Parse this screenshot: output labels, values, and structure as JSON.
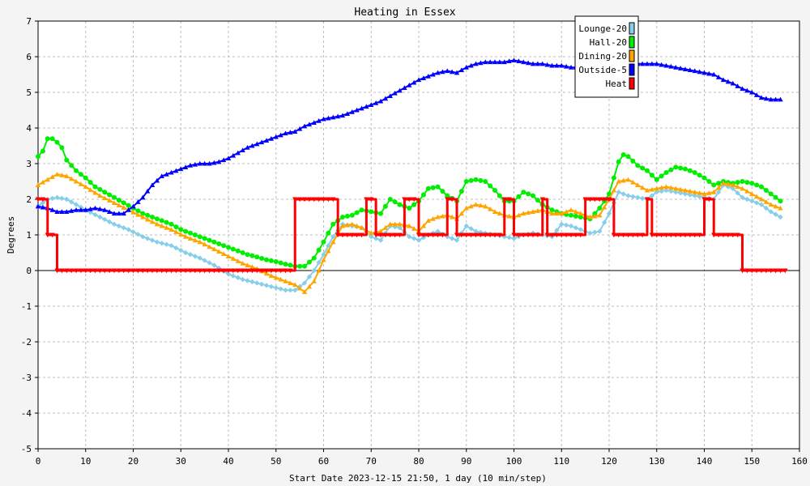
{
  "chart_data": {
    "type": "line",
    "title": "Heating in Essex",
    "xlabel": "Start Date 2023-12-15 21:50, 1 day (10 min/step)",
    "ylabel": "Degrees",
    "xlim": [
      0,
      160
    ],
    "ylim": [
      -5,
      7
    ],
    "xticks": [
      0,
      10,
      20,
      30,
      40,
      50,
      60,
      70,
      80,
      90,
      100,
      110,
      120,
      130,
      140,
      150,
      160
    ],
    "yticks": [
      -5,
      -4,
      -3,
      -2,
      -1,
      0,
      1,
      2,
      3,
      4,
      5,
      6,
      7
    ],
    "grid": true,
    "legend": "top-right",
    "background": "#f4f4f4",
    "series": [
      {
        "name": "Lounge-20",
        "color": "#87ceeb",
        "marker": "diamond",
        "x": [
          0,
          2,
          4,
          6,
          8,
          10,
          13,
          16,
          19,
          22,
          25,
          28,
          31,
          34,
          37,
          40,
          43,
          46,
          49,
          52,
          54,
          56,
          58,
          60,
          62,
          64,
          66,
          68,
          70,
          72,
          74,
          76,
          78,
          80,
          82,
          84,
          86,
          88,
          90,
          92,
          94,
          96,
          98,
          100,
          102,
          104,
          106,
          108,
          110,
          112,
          114,
          116,
          118,
          120,
          122,
          124,
          126,
          128,
          130,
          132,
          134,
          136,
          138,
          140,
          142,
          144,
          146,
          148,
          150,
          152,
          154,
          156
        ],
        "y": [
          1.8,
          2.0,
          2.05,
          2.0,
          1.85,
          1.7,
          1.5,
          1.3,
          1.15,
          0.95,
          0.8,
          0.7,
          0.5,
          0.35,
          0.15,
          -0.1,
          -0.25,
          -0.35,
          -0.45,
          -0.55,
          -0.55,
          -0.35,
          0.0,
          0.45,
          0.95,
          1.3,
          1.25,
          1.2,
          0.95,
          0.85,
          1.25,
          1.2,
          0.95,
          0.85,
          1.0,
          1.1,
          0.95,
          0.85,
          1.25,
          1.1,
          1.05,
          1.0,
          0.95,
          0.9,
          1.0,
          1.05,
          1.0,
          0.95,
          1.3,
          1.25,
          1.15,
          1.05,
          1.1,
          1.6,
          2.2,
          2.1,
          2.05,
          2.0,
          2.2,
          2.25,
          2.2,
          2.15,
          2.1,
          2.05,
          2.0,
          2.4,
          2.3,
          2.05,
          1.95,
          1.85,
          1.65,
          1.5
        ]
      },
      {
        "name": "Hall-20",
        "color": "#00ee00",
        "marker": "circle",
        "x": [
          0,
          1,
          2,
          3,
          4,
          5,
          6,
          8,
          10,
          12,
          14,
          16,
          18,
          20,
          22,
          24,
          26,
          28,
          30,
          32,
          34,
          36,
          38,
          40,
          42,
          44,
          46,
          48,
          50,
          52,
          54,
          56,
          58,
          60,
          62,
          64,
          66,
          68,
          70,
          72,
          74,
          76,
          78,
          80,
          82,
          84,
          86,
          88,
          90,
          92,
          94,
          96,
          98,
          100,
          102,
          104,
          106,
          108,
          110,
          112,
          114,
          116,
          118,
          120,
          122,
          123,
          124,
          126,
          128,
          130,
          132,
          134,
          136,
          138,
          140,
          142,
          144,
          146,
          148,
          150,
          152,
          154,
          156
        ],
        "y": [
          3.2,
          3.35,
          3.7,
          3.7,
          3.6,
          3.45,
          3.1,
          2.8,
          2.6,
          2.35,
          2.2,
          2.05,
          1.9,
          1.75,
          1.6,
          1.5,
          1.4,
          1.3,
          1.15,
          1.05,
          0.95,
          0.85,
          0.75,
          0.65,
          0.55,
          0.45,
          0.38,
          0.3,
          0.25,
          0.18,
          0.12,
          0.12,
          0.35,
          0.8,
          1.3,
          1.5,
          1.55,
          1.7,
          1.65,
          1.6,
          2.0,
          1.85,
          1.75,
          1.95,
          2.3,
          2.35,
          2.1,
          1.95,
          2.5,
          2.55,
          2.5,
          2.25,
          1.95,
          1.95,
          2.2,
          2.1,
          1.85,
          1.7,
          1.6,
          1.55,
          1.5,
          1.45,
          1.75,
          2.15,
          3.05,
          3.25,
          3.2,
          2.95,
          2.8,
          2.55,
          2.75,
          2.9,
          2.85,
          2.75,
          2.6,
          2.4,
          2.5,
          2.45,
          2.5,
          2.45,
          2.35,
          2.15,
          1.95
        ]
      },
      {
        "name": "Dining-20",
        "color": "#ffa500",
        "marker": "triangle",
        "x": [
          0,
          2,
          4,
          6,
          8,
          10,
          13,
          16,
          19,
          22,
          25,
          28,
          31,
          34,
          37,
          40,
          43,
          46,
          49,
          52,
          54,
          56,
          58,
          60,
          62,
          64,
          66,
          68,
          70,
          72,
          74,
          76,
          78,
          80,
          82,
          84,
          86,
          88,
          90,
          92,
          94,
          96,
          98,
          100,
          102,
          104,
          106,
          108,
          110,
          112,
          114,
          116,
          118,
          120,
          122,
          124,
          126,
          128,
          130,
          132,
          134,
          136,
          138,
          140,
          142,
          144,
          146,
          148,
          150,
          152,
          154,
          156
        ],
        "y": [
          2.4,
          2.55,
          2.7,
          2.65,
          2.5,
          2.35,
          2.1,
          1.9,
          1.7,
          1.5,
          1.3,
          1.15,
          0.95,
          0.8,
          0.6,
          0.4,
          0.2,
          0.05,
          -0.15,
          -0.3,
          -0.4,
          -0.6,
          -0.3,
          0.3,
          0.8,
          1.25,
          1.3,
          1.2,
          1.05,
          1.1,
          1.3,
          1.3,
          1.25,
          1.1,
          1.4,
          1.5,
          1.55,
          1.45,
          1.75,
          1.85,
          1.8,
          1.65,
          1.55,
          1.5,
          1.6,
          1.65,
          1.7,
          1.6,
          1.6,
          1.7,
          1.6,
          1.5,
          1.55,
          2.0,
          2.5,
          2.55,
          2.4,
          2.25,
          2.3,
          2.35,
          2.3,
          2.25,
          2.2,
          2.15,
          2.2,
          2.45,
          2.4,
          2.3,
          2.15,
          2.0,
          1.85,
          1.75
        ]
      },
      {
        "name": "Outside-5",
        "color": "#0000ff",
        "marker": "triangle",
        "x": [
          0,
          2,
          4,
          6,
          8,
          10,
          12,
          14,
          16,
          18,
          20,
          22,
          24,
          26,
          28,
          30,
          32,
          34,
          36,
          38,
          40,
          42,
          44,
          46,
          48,
          50,
          52,
          54,
          56,
          58,
          60,
          62,
          64,
          66,
          68,
          70,
          72,
          74,
          76,
          78,
          80,
          82,
          84,
          86,
          88,
          90,
          92,
          94,
          96,
          98,
          100,
          102,
          104,
          106,
          108,
          110,
          112,
          114,
          116,
          118,
          120,
          122,
          124,
          126,
          128,
          130,
          132,
          134,
          136,
          138,
          140,
          142,
          144,
          146,
          148,
          150,
          152,
          154,
          156
        ],
        "y": [
          1.8,
          1.75,
          1.65,
          1.65,
          1.7,
          1.7,
          1.75,
          1.7,
          1.6,
          1.6,
          1.8,
          2.05,
          2.4,
          2.65,
          2.75,
          2.85,
          2.95,
          3.0,
          3.0,
          3.05,
          3.15,
          3.3,
          3.45,
          3.55,
          3.65,
          3.75,
          3.85,
          3.9,
          4.05,
          4.15,
          4.25,
          4.3,
          4.35,
          4.45,
          4.55,
          4.65,
          4.75,
          4.9,
          5.05,
          5.2,
          5.35,
          5.45,
          5.55,
          5.6,
          5.55,
          5.7,
          5.8,
          5.85,
          5.85,
          5.85,
          5.9,
          5.85,
          5.8,
          5.8,
          5.75,
          5.75,
          5.7,
          5.7,
          5.75,
          5.8,
          5.8,
          5.8,
          5.8,
          5.8,
          5.8,
          5.8,
          5.75,
          5.7,
          5.65,
          5.6,
          5.55,
          5.5,
          5.35,
          5.25,
          5.1,
          5.0,
          4.85,
          4.8,
          4.8
        ]
      },
      {
        "name": "Heat",
        "color": "#ff0000",
        "marker": "triangle-down",
        "x": [
          0,
          2,
          2,
          4,
          4,
          54,
          54,
          63,
          63,
          69,
          69,
          71,
          71,
          77,
          77,
          80,
          80,
          86,
          86,
          88,
          88,
          98,
          98,
          100,
          100,
          106,
          106,
          107,
          107,
          115,
          115,
          121,
          121,
          128,
          128,
          129,
          129,
          140,
          140,
          142,
          142,
          148,
          148,
          157
        ],
        "y": [
          2,
          2,
          1,
          1,
          0,
          0,
          2,
          2,
          1,
          1,
          2,
          2,
          1,
          1,
          2,
          2,
          1,
          1,
          2,
          2,
          1,
          1,
          2,
          2,
          1,
          1,
          2,
          2,
          1,
          1,
          2,
          2,
          1,
          1,
          2,
          2,
          1,
          1,
          2,
          2,
          1,
          1,
          0,
          0
        ]
      }
    ]
  }
}
